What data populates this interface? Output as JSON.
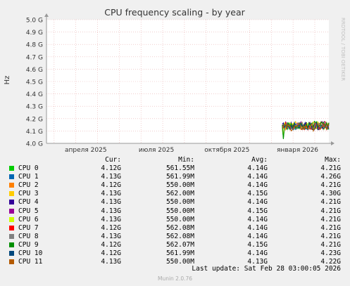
{
  "chart_data": {
    "type": "line",
    "title": "CPU frequency scaling - by year",
    "ylabel": "Hz",
    "ylim": [
      4.0,
      5.0
    ],
    "yticks": [
      "4.0 G",
      "4.1 G",
      "4.2 G",
      "4.3 G",
      "4.4 G",
      "4.5 G",
      "4.6 G",
      "4.7 G",
      "4.8 G",
      "4.9 G",
      "5.0 G"
    ],
    "ytick_values": [
      4.0,
      4.1,
      4.2,
      4.3,
      4.4,
      4.5,
      4.6,
      4.7,
      4.8,
      4.9,
      5.0
    ],
    "xticks": [
      "апреля 2025",
      "июля 2025",
      "октября 2025",
      "января 2026"
    ],
    "xtick_values": [
      0.184,
      0.434,
      0.684,
      0.934
    ],
    "x_note": "x values are fractions of the year window ending Feb 28 2026",
    "data_start_x": 0.835,
    "data_end_x": 1.0,
    "grid": true,
    "watermark": "RRDTOOL / TOBI OETIKER",
    "series": [
      {
        "name": "CPU 0",
        "color": "#00cc00",
        "center": 4.14,
        "amp": 0.03
      },
      {
        "name": "CPU 1",
        "color": "#0066b3",
        "center": 4.14,
        "amp": 0.03
      },
      {
        "name": "CPU 2",
        "color": "#ff8000",
        "center": 4.14,
        "amp": 0.03
      },
      {
        "name": "CPU 3",
        "color": "#ffcc00",
        "center": 4.15,
        "amp": 0.03
      },
      {
        "name": "CPU 4",
        "color": "#330099",
        "center": 4.14,
        "amp": 0.03
      },
      {
        "name": "CPU 5",
        "color": "#990099",
        "center": 4.15,
        "amp": 0.03
      },
      {
        "name": "CPU 6",
        "color": "#ccff00",
        "center": 4.14,
        "amp": 0.03
      },
      {
        "name": "CPU 7",
        "color": "#ff0000",
        "center": 4.14,
        "amp": 0.03
      },
      {
        "name": "CPU 8",
        "color": "#808080",
        "center": 4.14,
        "amp": 0.03
      },
      {
        "name": "CPU 9",
        "color": "#008f00",
        "center": 4.15,
        "amp": 0.03
      },
      {
        "name": "CPU 10",
        "color": "#00487d",
        "center": 4.14,
        "amp": 0.03
      },
      {
        "name": "CPU 11",
        "color": "#b35a00",
        "center": 4.13,
        "amp": 0.03
      }
    ]
  },
  "legend": {
    "headers": {
      "cur": "Cur:",
      "min": "Min:",
      "avg": "Avg:",
      "max": "Max:"
    },
    "rows": [
      {
        "name": "CPU 0",
        "color": "#00cc00",
        "cur": "4.12G",
        "min": "561.55M",
        "avg": "4.14G",
        "max": "4.21G"
      },
      {
        "name": "CPU 1",
        "color": "#0066b3",
        "cur": "4.13G",
        "min": "561.99M",
        "avg": "4.14G",
        "max": "4.26G"
      },
      {
        "name": "CPU 2",
        "color": "#ff8000",
        "cur": "4.12G",
        "min": "550.00M",
        "avg": "4.14G",
        "max": "4.21G"
      },
      {
        "name": "CPU 3",
        "color": "#ffcc00",
        "cur": "4.13G",
        "min": "562.00M",
        "avg": "4.15G",
        "max": "4.30G"
      },
      {
        "name": "CPU 4",
        "color": "#330099",
        "cur": "4.13G",
        "min": "550.00M",
        "avg": "4.14G",
        "max": "4.21G"
      },
      {
        "name": "CPU 5",
        "color": "#990099",
        "cur": "4.13G",
        "min": "550.00M",
        "avg": "4.15G",
        "max": "4.21G"
      },
      {
        "name": "CPU 6",
        "color": "#ccff00",
        "cur": "4.13G",
        "min": "550.00M",
        "avg": "4.14G",
        "max": "4.21G"
      },
      {
        "name": "CPU 7",
        "color": "#ff0000",
        "cur": "4.12G",
        "min": "562.08M",
        "avg": "4.14G",
        "max": "4.21G"
      },
      {
        "name": "CPU 8",
        "color": "#808080",
        "cur": "4.13G",
        "min": "562.08M",
        "avg": "4.14G",
        "max": "4.21G"
      },
      {
        "name": "CPU 9",
        "color": "#008f00",
        "cur": "4.12G",
        "min": "562.07M",
        "avg": "4.15G",
        "max": "4.21G"
      },
      {
        "name": "CPU 10",
        "color": "#00487d",
        "cur": "4.12G",
        "min": "561.99M",
        "avg": "4.14G",
        "max": "4.23G"
      },
      {
        "name": "CPU 11",
        "color": "#b35a00",
        "cur": "4.13G",
        "min": "550.00M",
        "avg": "4.13G",
        "max": "4.22G"
      }
    ]
  },
  "footer": {
    "last_update": "Last update: Sat Feb 28 03:00:05 2026",
    "munin": "Munin 2.0.76"
  }
}
